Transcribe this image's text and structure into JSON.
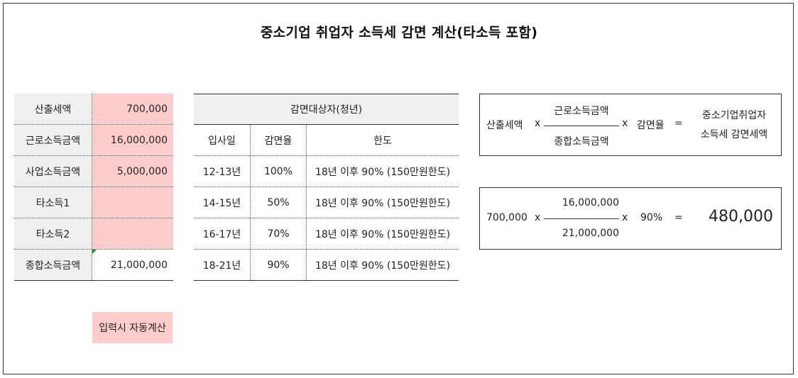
{
  "title": "중소기업 취업자 소득세 감면 계산(타소득 포함)",
  "inputs": [
    {
      "label": "산출세액",
      "value": "700,000"
    },
    {
      "label": "근로소득금액",
      "value": "16,000,000"
    },
    {
      "label": "사업소득금액",
      "value": "5,000,000"
    },
    {
      "label": "타소득1",
      "value": ""
    },
    {
      "label": "타소득2",
      "value": ""
    },
    {
      "label": "종합소득금액",
      "value": "21,000,000"
    }
  ],
  "auto_note": "입력시 자동계산",
  "reduction": {
    "header": "감면대상자(청년)",
    "columns": [
      "입사일",
      "감면율",
      "한도"
    ],
    "rows": [
      [
        "12-13년",
        "100%",
        "18년 이후 90% (150만원한도)"
      ],
      [
        "14-15년",
        "50%",
        "18년 이후 90% (150만원한도)"
      ],
      [
        "16-17년",
        "70%",
        "18년 이후 90% (150만원한도)"
      ],
      [
        "18-21년",
        "90%",
        "18년 이후 90% (150만원한도)"
      ]
    ]
  },
  "formula": {
    "tax_label": "산출세액",
    "times": "x",
    "numerator_label": "근로소득금액",
    "denominator_label": "종합소득금액",
    "rate_label": "감면율",
    "equals": "=",
    "result_line1": "중소기업취업자",
    "result_line2": "소득세 감면세액"
  },
  "calc": {
    "tax": "700,000",
    "numerator": "16,000,000",
    "denominator": "21,000,000",
    "rate": "90%",
    "result": "480,000"
  }
}
